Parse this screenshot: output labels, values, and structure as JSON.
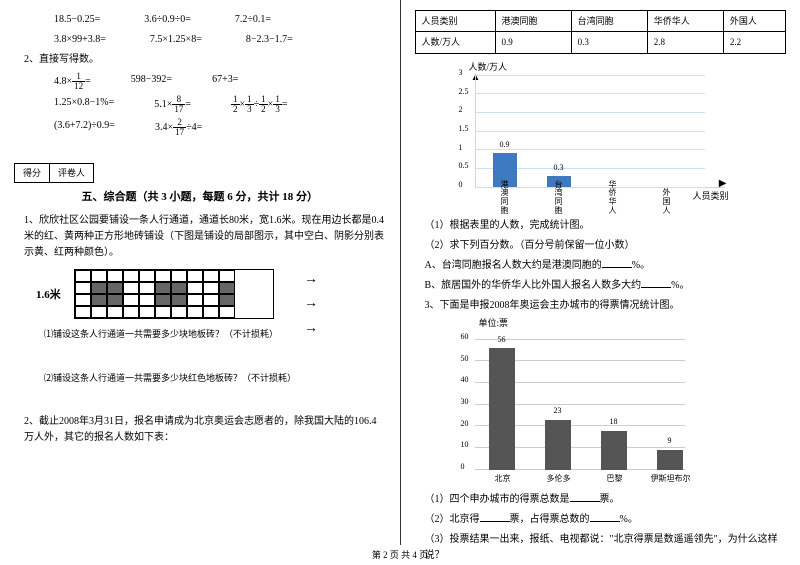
{
  "left": {
    "eq_block1": {
      "r1": [
        "18.5−0.25=",
        "3.6÷0.9÷0=",
        "7.2÷0.1="
      ],
      "r2": [
        "3.8×99+3.8=",
        "7.5×1.25×8=",
        "8−2.3−1.7="
      ]
    },
    "q2_title": "2、直接写得数。",
    "eq_block2": {
      "r1_a": "4.8×",
      "r1_a_frac_n": "1",
      "r1_a_frac_d": "12",
      "r1_a_tail": "=",
      "r1_b": "598−392=",
      "r1_c": "67+3=",
      "r2_a": "1.25×0.8−1%=",
      "r2_b_pre": "5.1×",
      "r2_b_n": "8",
      "r2_b_d": "17",
      "r2_b_tail": "=",
      "r2_c_1n": "1",
      "r2_c_1d": "2",
      "r2_c_2n": "1",
      "r2_c_2d": "3",
      "r2_c_3n": "1",
      "r2_c_3d": "2",
      "r2_c_4n": "1",
      "r2_c_4d": "3",
      "r3_a": "(3.6+7.2)÷0.9=",
      "r3_b_pre": "3.4×",
      "r3_b_n": "2",
      "r3_b_d": "17",
      "r3_b_tail": "÷4="
    },
    "score_labels": [
      "得分",
      "评卷人"
    ],
    "section5_title": "五、综合题（共 3 小题，每题 6 分，共计 18 分）",
    "q1_text": "1、欣欣社区公园要铺设一条人行通道，通道长80米，宽1.6米。现在用边长都是0.4米的红、黄两种正方形地砖铺设（下图是铺设的局部图示，其中空白、阴影分别表示黄、红两种颜色）。",
    "pave_label": "1.6米",
    "sub1": "⑴铺设这条人行通道一共需要多少块地板砖？（不计损耗）",
    "sub2": "⑵铺设这条人行通道一共需要多少块红色地板砖？（不计损耗）",
    "q2_text": "2、截止2008年3月31日，报名申请成为北京奥运会志愿者的，除我国大陆的106.4万人外，其它的报名人数如下表："
  },
  "right": {
    "table": {
      "headers": [
        "人员类别",
        "港澳同胞",
        "台湾同胞",
        "华侨华人",
        "外国人"
      ],
      "row_label": "人数/万人",
      "values": [
        "0.9",
        "0.3",
        "2.8",
        "2.2"
      ]
    },
    "chart1": {
      "y_title": "人数/万人",
      "x_title": "人员类别",
      "y_ticks": [
        "0",
        "0.5",
        "1",
        "1.5",
        "2",
        "2.5",
        "3"
      ],
      "categories": [
        "港澳同胞",
        "台湾同胞",
        "华侨华人",
        "外国人"
      ],
      "values": [
        0.9,
        0.3,
        null,
        null
      ],
      "labels": [
        "0.9",
        "0.3",
        "",
        ""
      ],
      "bar_color": "#3f79bf",
      "grid_color": "#c8dff5",
      "y_max": 3
    },
    "q_list": {
      "a": "（1）根据表里的人数，完成统计图。",
      "b": "（2）求下列百分数。（百分号前保留一位小数）",
      "b1_pre": "A、台湾同胞报名人数大约是港澳同胞的",
      "b1_suf": "%。",
      "b2_pre": "B、旅居国外的华侨华人比外国人报名人数多大约",
      "b2_suf": "%。"
    },
    "q3_text": "3、下面是申报2008年奥运会主办城市的得票情况统计图。",
    "chart2": {
      "unit": "单位:票",
      "y_ticks": [
        "0",
        "10",
        "20",
        "30",
        "40",
        "50",
        "60"
      ],
      "categories": [
        "北京",
        "多伦多",
        "巴黎",
        "伊斯坦布尔"
      ],
      "values": [
        56,
        23,
        18,
        9
      ],
      "bar_color": "#555555",
      "y_max": 60
    },
    "q3_sub": {
      "a_pre": "（1）四个申办城市的得票总数是",
      "a_suf": "票。",
      "b_pre": "（2）北京得",
      "b_mid": "票，占得票总数的",
      "b_suf": "%。",
      "c": "（3）投票结果一出来，报纸、电视都说：\"北京得票是数遥遥领先\"，为什么这样说？"
    }
  },
  "footer": "第 2 页 共 4 页"
}
